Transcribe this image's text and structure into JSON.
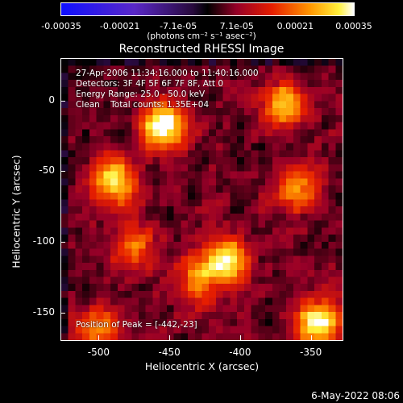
{
  "colorbar": {
    "ticks": [
      "-0.00035",
      "-0.00021",
      "-7.1e-05",
      "7.1e-05",
      "0.00021",
      "0.00035"
    ],
    "units": "(photons cm⁻² s⁻¹ asec⁻²)"
  },
  "title": "Reconstructed RHESSI Image",
  "info": {
    "line1": "27-Apr-2006 11:34:16.000 to 11:40:16.000",
    "line2": "Detectors: 3F 4F 5F 6F 7F 8F, Att 0",
    "line3": "Energy Range: 25.0 - 50.0 keV",
    "line4": "Clean    Total counts: 1.35E+04",
    "peak": "Position of Peak = [-442,-23]"
  },
  "axes": {
    "xlabel": "Heliocentric X (arcsec)",
    "ylabel": "Heliocentric Y (arcsec)",
    "xticks": [
      "-500",
      "-450",
      "-400",
      "-350"
    ],
    "yticks": [
      "0",
      "-50",
      "-100",
      "-150"
    ],
    "xlim": [
      -527,
      -327
    ],
    "ylim": [
      -170,
      30
    ]
  },
  "timestamp": "6-May-2022 08:06",
  "colors": {
    "low": "#1010ff",
    "mid": "#000000",
    "high": "#ffffff"
  }
}
